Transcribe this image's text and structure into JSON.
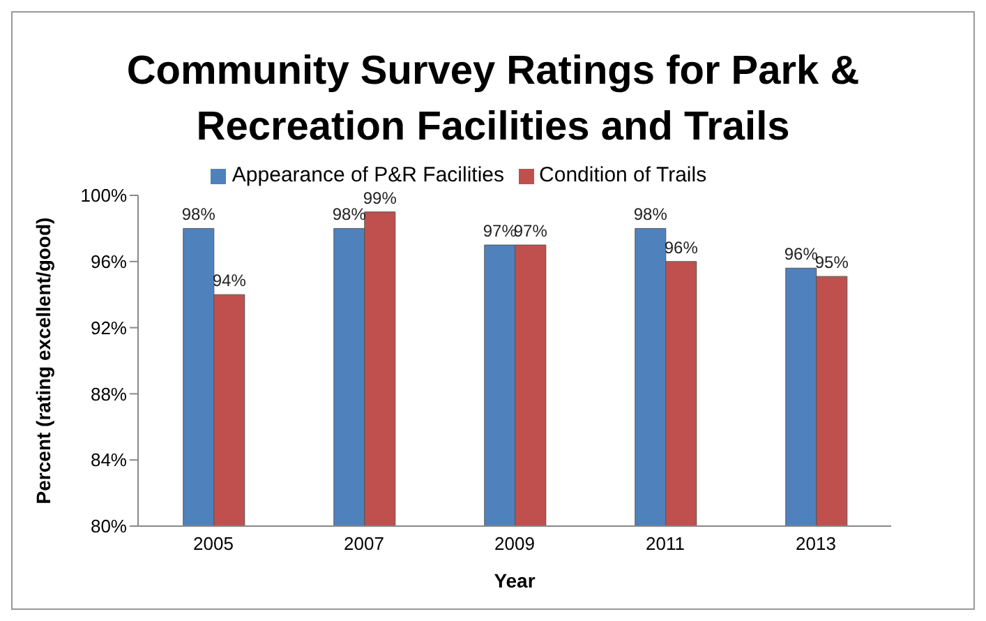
{
  "chart_data": {
    "type": "bar",
    "title": "Community Survey Ratings for Park & Recreation Facilities and Trails",
    "xlabel": "Year",
    "ylabel": "Percent (rating excellent/good)",
    "categories": [
      "2005",
      "2007",
      "2009",
      "2011",
      "2013"
    ],
    "series": [
      {
        "name": "Appearance of P&R Facilities",
        "color": "#4f81bd",
        "values": [
          98,
          98,
          97,
          98,
          95.6
        ],
        "value_labels": [
          "98%",
          "98%",
          "97%",
          "98%",
          "96%"
        ]
      },
      {
        "name": "Condition of Trails",
        "color": "#c0504d",
        "values": [
          94,
          99,
          97,
          96,
          95.1
        ],
        "value_labels": [
          "94%",
          "99%",
          "97%",
          "96%",
          "95%"
        ]
      }
    ],
    "ylim": [
      80,
      100
    ],
    "yticks": [
      {
        "value": 80,
        "label": "80%"
      },
      {
        "value": 84,
        "label": "84%"
      },
      {
        "value": 88,
        "label": "88%"
      },
      {
        "value": 92,
        "label": "92%"
      },
      {
        "value": 96,
        "label": "96%"
      },
      {
        "value": 100,
        "label": "100%"
      }
    ],
    "grid": false,
    "legend": "top"
  }
}
